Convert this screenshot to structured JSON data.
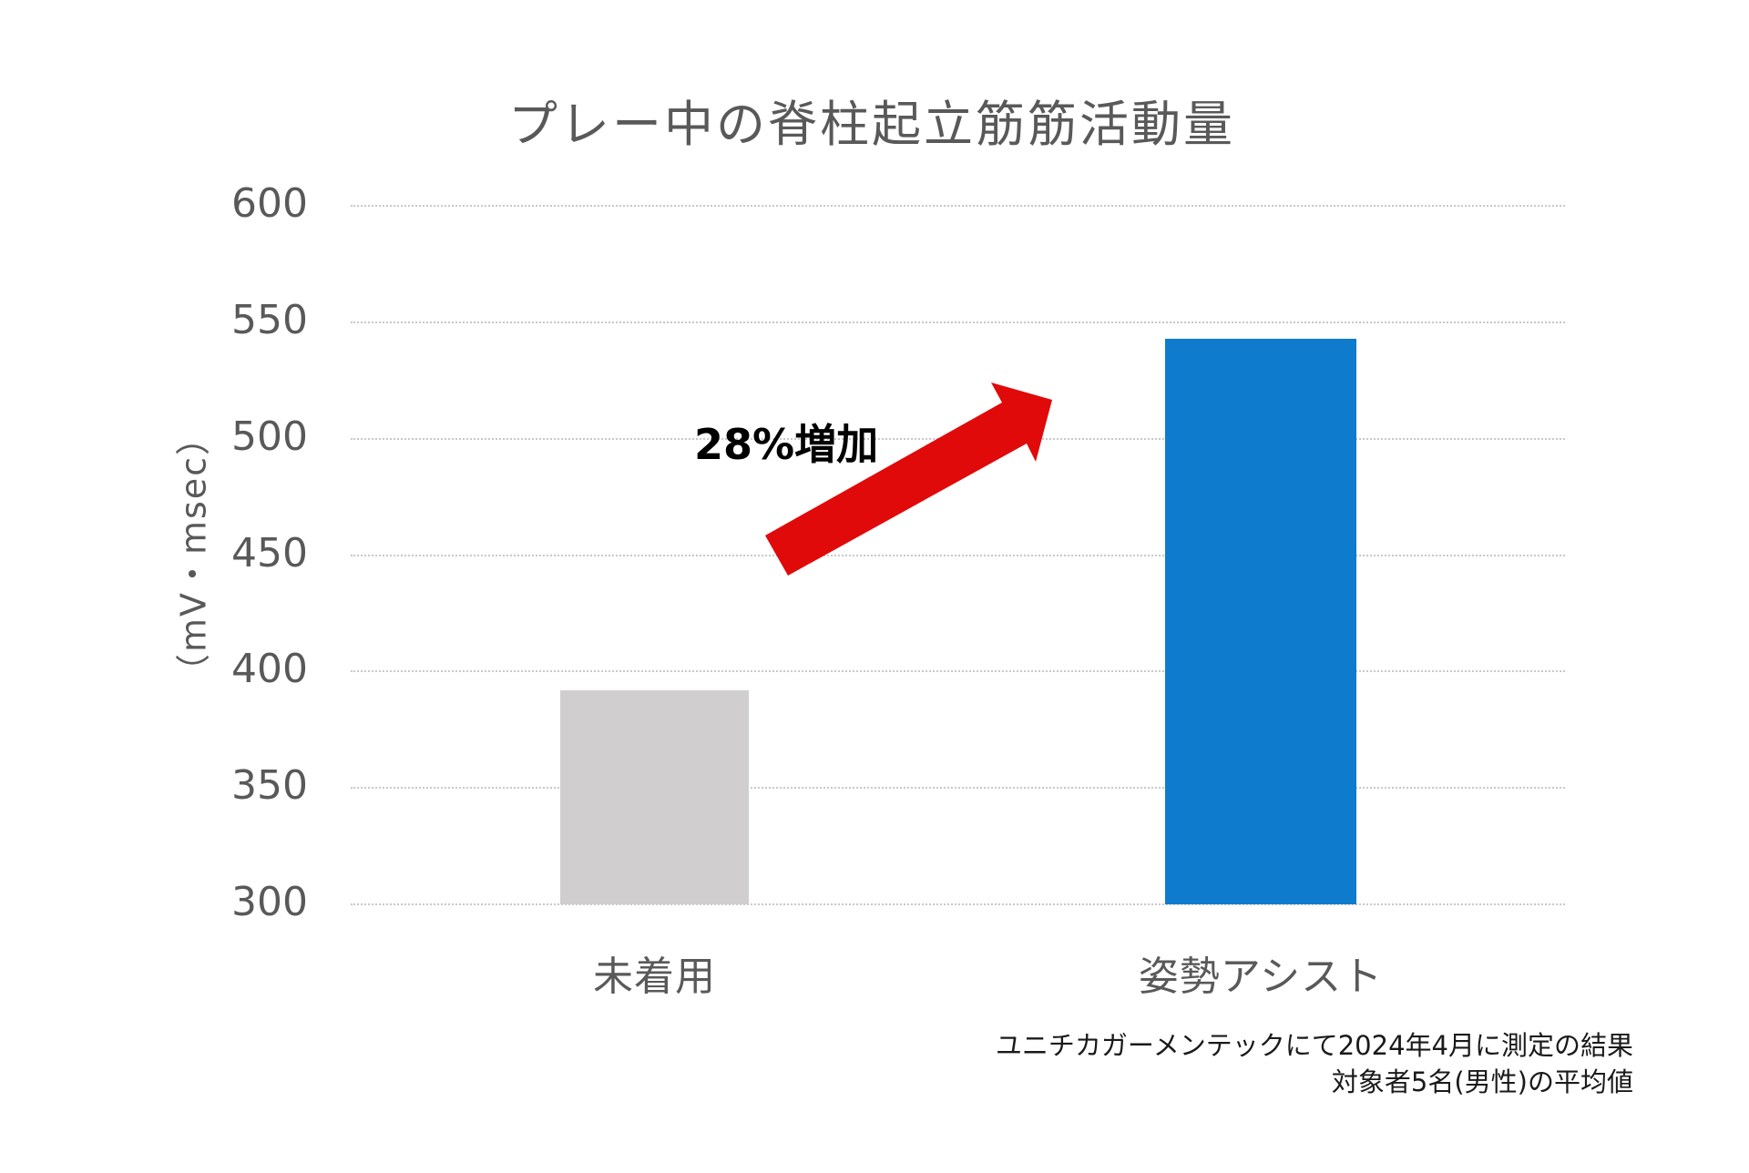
{
  "chart_data": {
    "type": "bar",
    "title": "プレー中の脊柱起立筋筋活動量",
    "xlabel": "",
    "ylabel": "（mV・msec）",
    "categories": [
      "未着用",
      "姿勢アシスト"
    ],
    "values": [
      392,
      543
    ],
    "bar_colors": [
      "#D0CECF",
      "#0E7BCD"
    ],
    "ylim": [
      300,
      600
    ],
    "yticks": [
      300,
      350,
      400,
      450,
      500,
      550,
      600
    ],
    "grid": true,
    "legend": null,
    "annotations": [
      {
        "text": "28%増加",
        "type": "arrow-label",
        "arrow_color": "#E00A0A"
      }
    ],
    "footnotes": [
      "ユニチカガーメンテックにて2024年4月に測定の結果",
      "対象者5名(男性)の平均値"
    ]
  },
  "title": "プレー中の脊柱起立筋筋活動量",
  "y_axis": {
    "title": "（mV・msec）",
    "ticks": [
      "600",
      "550",
      "500",
      "450",
      "400",
      "350",
      "300"
    ]
  },
  "x_axis": {
    "labels": [
      "未着用",
      "姿勢アシスト"
    ]
  },
  "annotation": {
    "label": "28%増加",
    "arrow_color": "#E00A0A"
  },
  "footnote": {
    "line1": "ユニチカガーメンテックにて2024年4月に測定の結果",
    "line2": "対象者5名(男性)の平均値"
  },
  "colors": {
    "bar_unworn": "#D0CECF",
    "bar_assist": "#0E7BCD",
    "arrow": "#E00A0A",
    "text": "#595959",
    "grid": "#C8C8C8"
  }
}
